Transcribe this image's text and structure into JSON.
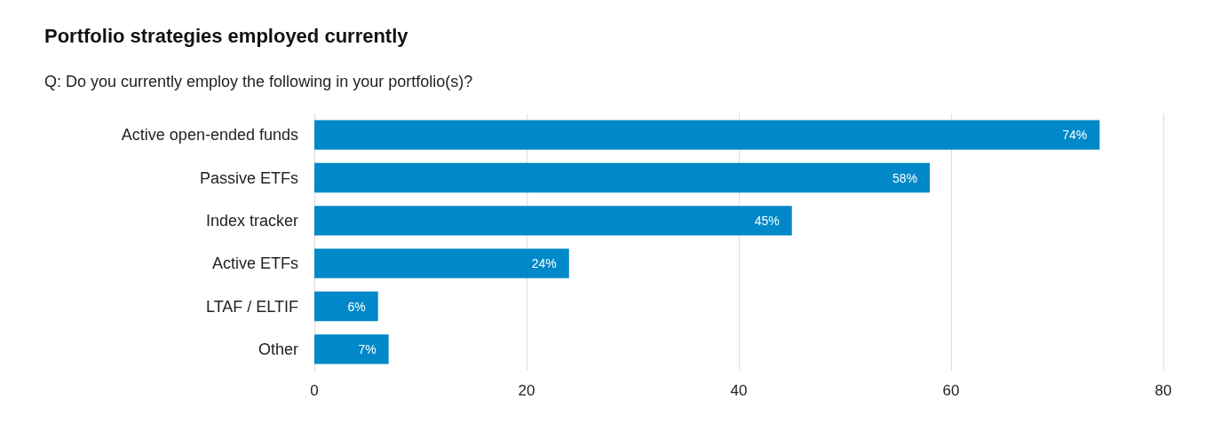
{
  "chart_data": {
    "type": "bar",
    "orientation": "horizontal",
    "title": "Portfolio strategies employed currently",
    "subtitle": "Q: Do you currently employ the following in your portfolio(s)?",
    "categories": [
      "Active open-ended funds",
      "Passive ETFs",
      "Index tracker",
      "Active ETFs",
      "LTAF / ELTIF",
      "Other"
    ],
    "values": [
      74,
      58,
      45,
      24,
      6,
      7
    ],
    "value_labels": [
      "74%",
      "58%",
      "45%",
      "24%",
      "6%",
      "7%"
    ],
    "color": "#0088c8",
    "xlim": [
      0,
      80
    ],
    "xticks": [
      0,
      20,
      40,
      60,
      80
    ],
    "grid": "x"
  }
}
